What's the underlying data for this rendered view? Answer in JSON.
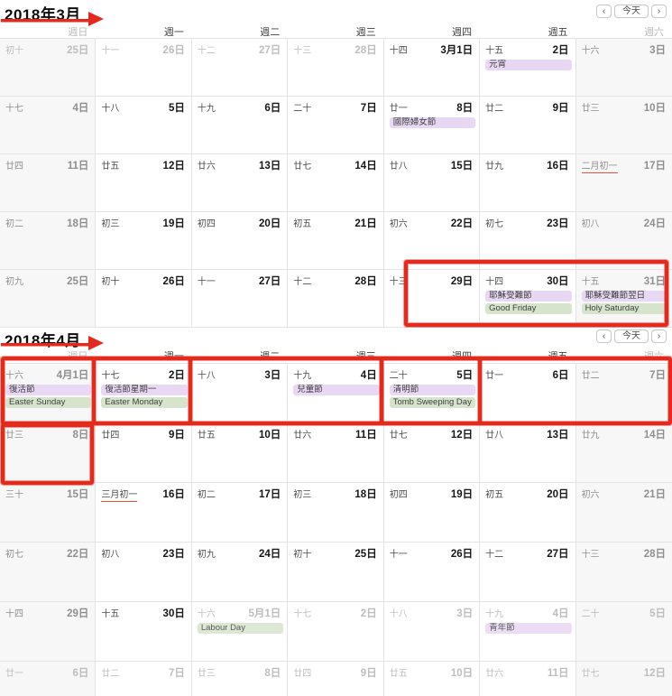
{
  "colors": {
    "annotation_red": "#e5291d",
    "chip_purple": "#e9d8f3",
    "chip_green": "#d6e4cc",
    "weekend_bg": "#f7f7f7",
    "lunar_month_start_underline": "#e8503a"
  },
  "nav": {
    "prev": "‹",
    "today": "今天",
    "next": "›"
  },
  "months": [
    {
      "id": "march",
      "title": "2018年3月",
      "weekdays": [
        "週日",
        "週一",
        "週二",
        "週三",
        "週四",
        "週五",
        "週六"
      ],
      "weeks": [
        [
          {
            "lunar": "初十",
            "date": "25日",
            "dim": true
          },
          {
            "lunar": "十一",
            "date": "26日",
            "dim": true
          },
          {
            "lunar": "十二",
            "date": "27日",
            "dim": true
          },
          {
            "lunar": "十三",
            "date": "28日",
            "dim": true
          },
          {
            "lunar": "十四",
            "date": "3月1日"
          },
          {
            "lunar": "十五",
            "date": "2日",
            "events": [
              {
                "label": "元宵",
                "type": "purple"
              }
            ]
          },
          {
            "lunar": "十六",
            "date": "3日"
          }
        ],
        [
          {
            "lunar": "十七",
            "date": "4日"
          },
          {
            "lunar": "十八",
            "date": "5日"
          },
          {
            "lunar": "十九",
            "date": "6日"
          },
          {
            "lunar": "二十",
            "date": "7日"
          },
          {
            "lunar": "廿一",
            "date": "8日",
            "events": [
              {
                "label": "國際婦女節",
                "type": "purple"
              }
            ]
          },
          {
            "lunar": "廿二",
            "date": "9日"
          },
          {
            "lunar": "廿三",
            "date": "10日"
          }
        ],
        [
          {
            "lunar": "廿四",
            "date": "11日"
          },
          {
            "lunar": "廿五",
            "date": "12日"
          },
          {
            "lunar": "廿六",
            "date": "13日"
          },
          {
            "lunar": "廿七",
            "date": "14日"
          },
          {
            "lunar": "廿八",
            "date": "15日"
          },
          {
            "lunar": "廿九",
            "date": "16日"
          },
          {
            "lunar": "二月初一",
            "date": "17日",
            "lunar_highlight": true
          }
        ],
        [
          {
            "lunar": "初二",
            "date": "18日"
          },
          {
            "lunar": "初三",
            "date": "19日"
          },
          {
            "lunar": "初四",
            "date": "20日"
          },
          {
            "lunar": "初五",
            "date": "21日"
          },
          {
            "lunar": "初六",
            "date": "22日"
          },
          {
            "lunar": "初七",
            "date": "23日"
          },
          {
            "lunar": "初八",
            "date": "24日"
          }
        ],
        [
          {
            "lunar": "初九",
            "date": "25日"
          },
          {
            "lunar": "初十",
            "date": "26日"
          },
          {
            "lunar": "十一",
            "date": "27日"
          },
          {
            "lunar": "十二",
            "date": "28日"
          },
          {
            "lunar": "十三",
            "date": "29日"
          },
          {
            "lunar": "十四",
            "date": "30日",
            "events": [
              {
                "label": "耶穌受難節",
                "type": "purple"
              },
              {
                "label": "Good Friday",
                "type": "green"
              }
            ]
          },
          {
            "lunar": "十五",
            "date": "31日",
            "events": [
              {
                "label": "耶穌受難節翌日",
                "type": "purple"
              },
              {
                "label": "Holy Saturday",
                "type": "green"
              }
            ]
          }
        ]
      ]
    },
    {
      "id": "april",
      "title": "2018年4月",
      "weekdays": [
        "週日",
        "週一",
        "週二",
        "週三",
        "週四",
        "週五",
        "週六"
      ],
      "weeks": [
        [
          {
            "lunar": "十六",
            "date": "4月1日",
            "events": [
              {
                "label": "復活節",
                "type": "purple"
              },
              {
                "label": "Easter Sunday",
                "type": "green"
              }
            ]
          },
          {
            "lunar": "十七",
            "date": "2日",
            "events": [
              {
                "label": "復活節星期一",
                "type": "purple"
              },
              {
                "label": "Easter Monday",
                "type": "green"
              }
            ]
          },
          {
            "lunar": "十八",
            "date": "3日"
          },
          {
            "lunar": "十九",
            "date": "4日",
            "events": [
              {
                "label": "兒童節",
                "type": "purple"
              }
            ]
          },
          {
            "lunar": "二十",
            "date": "5日",
            "events": [
              {
                "label": "清明節",
                "type": "purple"
              },
              {
                "label": "Tomb Sweeping Day",
                "type": "green"
              }
            ]
          },
          {
            "lunar": "廿一",
            "date": "6日"
          },
          {
            "lunar": "廿二",
            "date": "7日"
          }
        ],
        [
          {
            "lunar": "廿三",
            "date": "8日"
          },
          {
            "lunar": "廿四",
            "date": "9日"
          },
          {
            "lunar": "廿五",
            "date": "10日"
          },
          {
            "lunar": "廿六",
            "date": "11日"
          },
          {
            "lunar": "廿七",
            "date": "12日"
          },
          {
            "lunar": "廿八",
            "date": "13日"
          },
          {
            "lunar": "廿九",
            "date": "14日"
          }
        ],
        [
          {
            "lunar": "三十",
            "date": "15日"
          },
          {
            "lunar": "三月初一",
            "date": "16日",
            "lunar_highlight": true
          },
          {
            "lunar": "初二",
            "date": "17日"
          },
          {
            "lunar": "初三",
            "date": "18日"
          },
          {
            "lunar": "初四",
            "date": "19日"
          },
          {
            "lunar": "初五",
            "date": "20日"
          },
          {
            "lunar": "初六",
            "date": "21日"
          }
        ],
        [
          {
            "lunar": "初七",
            "date": "22日"
          },
          {
            "lunar": "初八",
            "date": "23日"
          },
          {
            "lunar": "初九",
            "date": "24日"
          },
          {
            "lunar": "初十",
            "date": "25日"
          },
          {
            "lunar": "十一",
            "date": "26日"
          },
          {
            "lunar": "十二",
            "date": "27日"
          },
          {
            "lunar": "十三",
            "date": "28日"
          }
        ],
        [
          {
            "lunar": "十四",
            "date": "29日"
          },
          {
            "lunar": "十五",
            "date": "30日"
          },
          {
            "lunar": "十六",
            "date": "5月1日",
            "dim": true,
            "events": [
              {
                "label": "Labour Day",
                "type": "green"
              }
            ]
          },
          {
            "lunar": "十七",
            "date": "2日",
            "dim": true
          },
          {
            "lunar": "十八",
            "date": "3日",
            "dim": true
          },
          {
            "lunar": "十九",
            "date": "4日",
            "dim": true,
            "events": [
              {
                "label": "青年節",
                "type": "purple"
              }
            ]
          },
          {
            "lunar": "二十",
            "date": "5日",
            "dim": true
          }
        ],
        [
          {
            "lunar": "廿一",
            "date": "6日",
            "dim": true
          },
          {
            "lunar": "廿二",
            "date": "7日",
            "dim": true
          },
          {
            "lunar": "廿三",
            "date": "8日",
            "dim": true
          },
          {
            "lunar": "廿四",
            "date": "9日",
            "dim": true
          },
          {
            "lunar": "廿五",
            "date": "10日",
            "dim": true
          },
          {
            "lunar": "廿六",
            "date": "11日",
            "dim": true
          },
          {
            "lunar": "廿七",
            "date": "12日",
            "dim": true
          }
        ]
      ]
    }
  ]
}
